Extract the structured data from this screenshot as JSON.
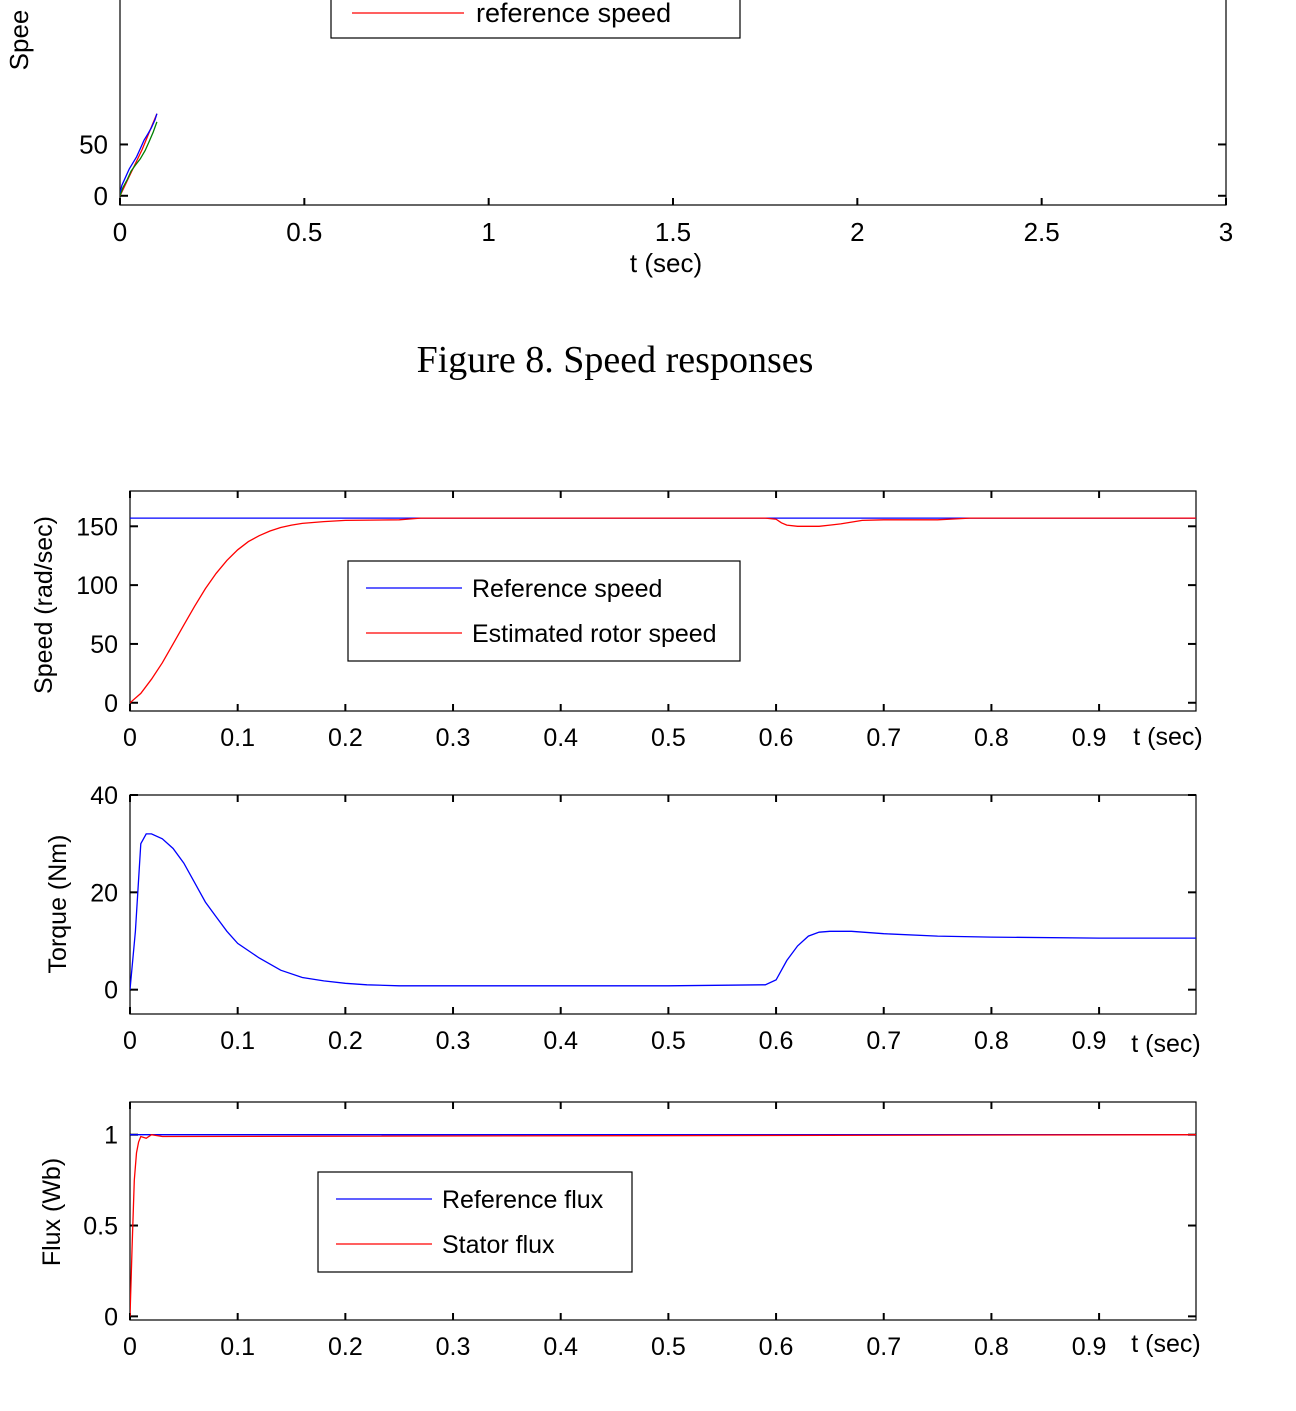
{
  "caption": "Figure 8. Speed responses",
  "chart_data": [
    {
      "type": "line",
      "ylabel": "Spee",
      "xlabel": "t (sec)",
      "xlim": [
        0,
        3
      ],
      "ylim": [
        -9,
        220
      ],
      "xticks": [
        "0",
        "0.5",
        "1",
        "1.5",
        "2",
        "2.5",
        "3"
      ],
      "yticks": [
        "0",
        "50"
      ],
      "legend": {
        "entries": [
          "reference speed"
        ],
        "placement": "top-center"
      },
      "series": [
        {
          "name": "reference speed",
          "color": "#ff0000",
          "x": [
            0,
            0.06,
            0.1
          ],
          "y": [
            0,
            45,
            80
          ]
        },
        {
          "color": "#0000ff",
          "x": [
            0,
            0.005,
            0.015,
            0.025,
            0.035,
            0.045,
            0.055,
            0.065,
            0.075,
            0.085,
            0.095,
            0.1
          ],
          "y": [
            2,
            10,
            18,
            26,
            32,
            38,
            46,
            54,
            60,
            66,
            74,
            80
          ]
        },
        {
          "color": "#008000",
          "x": [
            0,
            0.008,
            0.02,
            0.03,
            0.042,
            0.055,
            0.068,
            0.078,
            0.09,
            0.1
          ],
          "y": [
            0,
            8,
            16,
            24,
            30,
            36,
            44,
            52,
            62,
            72
          ]
        }
      ]
    },
    {
      "type": "line",
      "ylabel": "Speed (rad/sec)",
      "xlabel": "t (sec)",
      "xlim": [
        0,
        0.99
      ],
      "ylim": [
        -7,
        180
      ],
      "xticks": [
        "0",
        "0.1",
        "0.2",
        "0.3",
        "0.4",
        "0.5",
        "0.6",
        "0.7",
        "0.8",
        "0.9"
      ],
      "yticks": [
        "0",
        "50",
        "100",
        "150"
      ],
      "legend": {
        "entries": [
          "Reference speed",
          "Estimated rotor speed"
        ],
        "placement": "center-left"
      },
      "series": [
        {
          "name": "Reference speed",
          "color": "#0000ff",
          "x": [
            0,
            0.99
          ],
          "y": [
            157,
            157
          ]
        },
        {
          "name": "Estimated rotor speed",
          "color": "#ff0000",
          "x": [
            0,
            0.01,
            0.02,
            0.03,
            0.04,
            0.05,
            0.06,
            0.07,
            0.08,
            0.09,
            0.1,
            0.11,
            0.12,
            0.13,
            0.14,
            0.15,
            0.16,
            0.18,
            0.2,
            0.25,
            0.27,
            0.3,
            0.4,
            0.5,
            0.59,
            0.6,
            0.605,
            0.61,
            0.62,
            0.64,
            0.65,
            0.66,
            0.68,
            0.7,
            0.75,
            0.78,
            0.8,
            0.9,
            0.99
          ],
          "y": [
            0,
            8,
            20,
            34,
            50,
            66,
            82,
            97,
            110,
            121,
            130,
            137,
            142,
            146,
            149,
            151,
            152.5,
            154,
            155,
            155.5,
            157,
            157,
            157,
            157,
            157,
            156,
            153,
            151,
            150,
            150,
            151,
            152,
            155,
            155.5,
            155.5,
            157,
            157,
            157,
            157
          ]
        }
      ]
    },
    {
      "type": "line",
      "ylabel": "Torque (Nm)",
      "xlabel": "t (sec)",
      "xlim": [
        0,
        0.99
      ],
      "ylim": [
        -5,
        40
      ],
      "xticks": [
        "0",
        "0.1",
        "0.2",
        "0.3",
        "0.4",
        "0.5",
        "0.6",
        "0.7",
        "0.8",
        "0.9"
      ],
      "yticks": [
        "0",
        "20",
        "40"
      ],
      "series": [
        {
          "color": "#0000ff",
          "x": [
            0,
            0.005,
            0.01,
            0.015,
            0.02,
            0.03,
            0.04,
            0.05,
            0.06,
            0.07,
            0.08,
            0.09,
            0.1,
            0.12,
            0.14,
            0.16,
            0.18,
            0.2,
            0.22,
            0.25,
            0.3,
            0.4,
            0.5,
            0.59,
            0.6,
            0.61,
            0.62,
            0.63,
            0.64,
            0.65,
            0.67,
            0.7,
            0.75,
            0.8,
            0.9,
            0.99
          ],
          "y": [
            0,
            12,
            30,
            32,
            32,
            31,
            29,
            26,
            22,
            18,
            15,
            12,
            9.5,
            6.5,
            4,
            2.5,
            1.8,
            1.3,
            1,
            0.8,
            0.8,
            0.8,
            0.8,
            1,
            2,
            6,
            9,
            11,
            11.8,
            12,
            12,
            11.5,
            11,
            10.8,
            10.6,
            10.6
          ]
        }
      ]
    },
    {
      "type": "line",
      "ylabel": "Flux (Wb)",
      "xlabel": "t (sec)",
      "xlim": [
        0,
        0.99
      ],
      "ylim": [
        -0.02,
        1.18
      ],
      "xticks": [
        "0",
        "0.1",
        "0.2",
        "0.3",
        "0.4",
        "0.5",
        "0.6",
        "0.7",
        "0.8",
        "0.9"
      ],
      "yticks": [
        "0",
        "0.5",
        "1"
      ],
      "legend": {
        "entries": [
          "Reference flux",
          "Stator flux"
        ],
        "placement": "center-left"
      },
      "series": [
        {
          "name": "Reference flux",
          "color": "#0000ff",
          "x": [
            0,
            0.99
          ],
          "y": [
            1,
            1
          ]
        },
        {
          "name": "Stator flux",
          "color": "#ff0000",
          "x": [
            0,
            0.002,
            0.004,
            0.006,
            0.008,
            0.01,
            0.015,
            0.02,
            0.03,
            0.99
          ],
          "y": [
            0,
            0.4,
            0.75,
            0.9,
            0.96,
            0.99,
            0.98,
            1,
            0.99,
            1
          ]
        }
      ]
    }
  ]
}
